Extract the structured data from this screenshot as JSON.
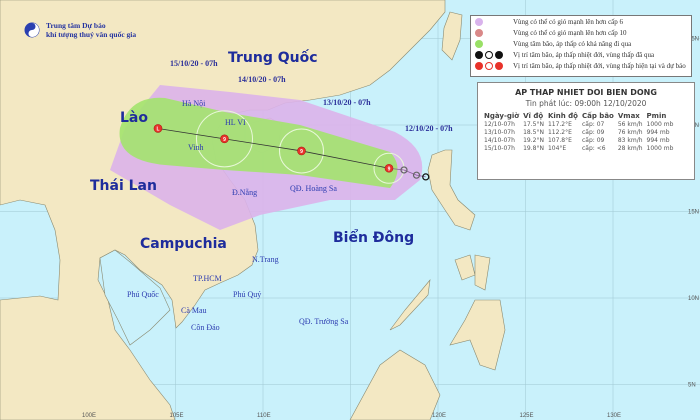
{
  "header": {
    "org_line1": "Trung tâm Dự báo",
    "org_line2": "khí tượng thuỷ văn quốc gia"
  },
  "legend": {
    "items": [
      {
        "label": "Vùng có thể có gió mạnh lên hơn cấp 6",
        "color": "#d9b3ec"
      },
      {
        "label": "Vùng có thể có gió mạnh lên hơn cấp 10",
        "color": "#d98888"
      },
      {
        "label": "Vùng tâm bão, áp thấp có khả năng đi qua",
        "color": "#99e066"
      },
      {
        "label": "Vị trí tâm bão, áp thấp nhiệt đới, vùng thấp đã qua",
        "color": "#111111"
      },
      {
        "label": "Vị trí tâm bão, áp thấp nhiệt đới, vùng thấp hiện tại và dự báo",
        "color": "#e8322a"
      }
    ]
  },
  "forecast": {
    "title": "AP THAP NHIET DOI BIEN DONG",
    "issued": "Tin phát lúc: 09:00h 12/10/2020",
    "columns": [
      "Ngày-giờ",
      "Vĩ độ",
      "Kinh độ",
      "Cấp bão",
      "Vmax",
      "Pmin"
    ],
    "rows": [
      {
        "time": "12/10-07h",
        "lat": "17.5°N",
        "lon": "117.2°E",
        "level": "cấp: 07",
        "vmax": "56 km/h",
        "pmin": "1000 mb",
        "lat_val": 17.5,
        "lon_val": 117.2
      },
      {
        "time": "13/10-07h",
        "lat": "18.5°N",
        "lon": "112.2°E",
        "level": "cấp: 09",
        "vmax": "76 km/h",
        "pmin": "994 mb",
        "lat_val": 18.5,
        "lon_val": 112.2
      },
      {
        "time": "14/10-07h",
        "lat": "19.2°N",
        "lon": "107.8°E",
        "level": "cấp: 09",
        "vmax": "83 km/h",
        "pmin": "994 mb",
        "lat_val": 19.2,
        "lon_val": 107.8
      },
      {
        "time": "15/10-07h",
        "lat": "19.8°N",
        "lon": "104°E",
        "level": "cấp: <6",
        "vmax": "28 km/h",
        "pmin": "1000 mb",
        "lat_val": 19.8,
        "lon_val": 104
      }
    ]
  },
  "map": {
    "countries": [
      "Trung Quốc",
      "Lào",
      "Thái Lan",
      "Campuchia",
      "Biển Đông"
    ],
    "places": [
      "HL VI",
      "Vinh",
      "Đ.Nẵng",
      "QĐ. Hoàng Sa",
      "N.Trang",
      "TP.HCM",
      "Phú Quốc",
      "Phú Quý",
      "Cà Mau",
      "Côn Đảo",
      "QĐ. Trường Sa",
      "Hà Nội"
    ],
    "date_labels": [
      "15/10/20 - 07h",
      "14/10/20 - 07h",
      "13/10/20 - 07h",
      "12/10/20 - 07h"
    ],
    "lon_ticks": [
      "100E",
      "105E",
      "110E",
      "120E",
      "125E",
      "130E"
    ],
    "lat_ticks": [
      "25N",
      "20N",
      "15N",
      "10N",
      "5N"
    ],
    "colors": {
      "sea": "#c9f1fb",
      "land": "#f3e8c3",
      "cone6": "#dcb2ea",
      "cone_green": "#a3e36e",
      "current": "#e8322a"
    }
  }
}
